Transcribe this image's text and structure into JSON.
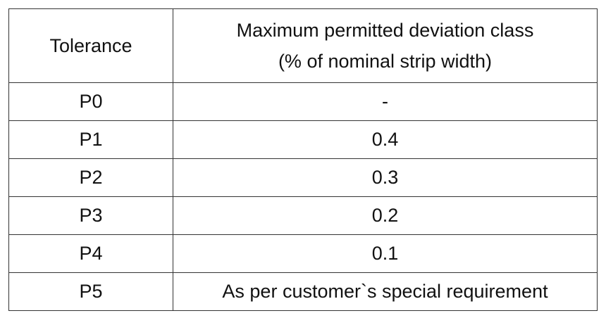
{
  "table": {
    "header": [
      "Tolerance",
      [
        "Maximum permitted deviation class",
        "(% of nominal strip width)"
      ]
    ],
    "rows": [
      [
        "P0",
        "-"
      ],
      [
        "P1",
        0.4
      ],
      [
        "P2",
        0.3
      ],
      [
        "P3",
        0.2
      ],
      [
        "P4",
        0.1
      ],
      [
        "P5",
        "As per customer`s special requirement"
      ]
    ]
  }
}
